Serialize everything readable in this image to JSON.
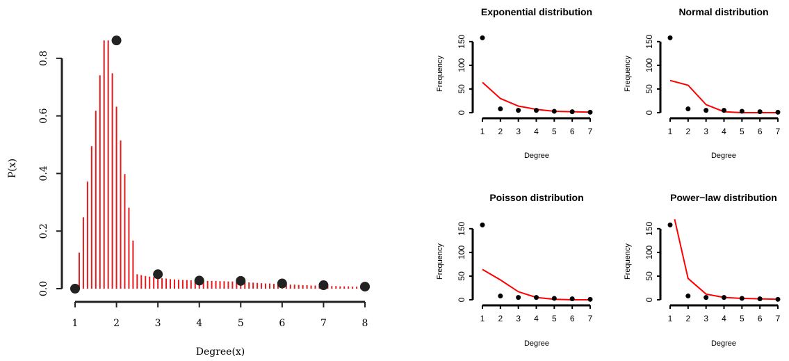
{
  "chart_data": [
    {
      "type": "line",
      "title": "",
      "xlabel": "Degree(x)",
      "ylabel": "P(x)",
      "xlim": [
        1,
        8
      ],
      "ylim": [
        0,
        0.86
      ],
      "xticks": [
        1,
        2,
        3,
        4,
        5,
        6,
        7,
        8
      ],
      "yticks": [
        0.0,
        0.2,
        0.4,
        0.6,
        0.8
      ],
      "ytick_labels": [
        "0.0",
        "0.2",
        "0.4",
        "0.6",
        "0.8"
      ],
      "grid": false,
      "colors": {
        "density": "#e41a1c",
        "points": "#222222"
      },
      "series": [
        {
          "style": "vertical-lines",
          "x": [
            1.0,
            1.1,
            1.2,
            1.3,
            1.4,
            1.5,
            1.6,
            1.7,
            1.8,
            1.9,
            2.0,
            2.1,
            2.2,
            2.3,
            2.4,
            2.5,
            2.6,
            2.7,
            2.8,
            2.9,
            3.0,
            3.1,
            3.2,
            3.3,
            3.4,
            3.5,
            3.6,
            3.7,
            3.8,
            3.9,
            4.0,
            4.1,
            4.2,
            4.3,
            4.4,
            4.5,
            4.6,
            4.7,
            4.8,
            4.9,
            5.0,
            5.1,
            5.2,
            5.3,
            5.4,
            5.5,
            5.6,
            5.7,
            5.8,
            5.9,
            6.0,
            6.1,
            6.2,
            6.3,
            6.4,
            6.5,
            6.6,
            6.7,
            6.8,
            6.9,
            7.0,
            7.1,
            7.2,
            7.3,
            7.4,
            7.5,
            7.6,
            7.7,
            7.8,
            7.9,
            8.0
          ],
          "y": [
            0.0,
            0.125,
            0.248,
            0.372,
            0.495,
            0.618,
            0.741,
            0.862,
            0.862,
            0.748,
            0.632,
            0.515,
            0.398,
            0.281,
            0.167,
            0.05,
            0.047,
            0.044,
            0.042,
            0.04,
            0.038,
            0.036,
            0.035,
            0.033,
            0.032,
            0.031,
            0.03,
            0.03,
            0.029,
            0.028,
            0.028,
            0.028,
            0.027,
            0.027,
            0.027,
            0.026,
            0.026,
            0.025,
            0.025,
            0.024,
            0.024,
            0.023,
            0.022,
            0.021,
            0.02,
            0.019,
            0.018,
            0.018,
            0.017,
            0.016,
            0.016,
            0.015,
            0.014,
            0.014,
            0.013,
            0.012,
            0.012,
            0.011,
            0.011,
            0.01,
            0.01,
            0.009,
            0.009,
            0.009,
            0.008,
            0.008,
            0.008,
            0.007,
            0.007,
            0.007,
            0.007
          ]
        },
        {
          "style": "points",
          "x": [
            1,
            2,
            3,
            4,
            5,
            6,
            7,
            8
          ],
          "y": [
            0.0,
            0.862,
            0.05,
            0.028,
            0.027,
            0.018,
            0.012,
            0.007
          ]
        }
      ]
    },
    {
      "type": "line",
      "title": "Exponential distribution",
      "xlabel": "Degree",
      "ylabel": "Frequency",
      "xlim": [
        1,
        7
      ],
      "ylim": [
        0,
        160
      ],
      "xticks": [
        1,
        2,
        3,
        4,
        5,
        6,
        7
      ],
      "yticks": [
        0,
        50,
        100,
        150
      ],
      "grid": false,
      "colors": {
        "fit": "#ff0000",
        "points": "#000000"
      },
      "series": [
        {
          "style": "points",
          "x": [
            1,
            2,
            3,
            4,
            5,
            6,
            7
          ],
          "y": [
            158,
            8,
            5,
            5,
            3,
            2,
            1
          ]
        },
        {
          "style": "line",
          "x": [
            1,
            2,
            3,
            4,
            5,
            6,
            7
          ],
          "y": [
            64,
            30,
            14,
            7,
            3,
            2,
            1
          ]
        }
      ]
    },
    {
      "type": "line",
      "title": "Normal distribution",
      "xlabel": "Degree",
      "ylabel": "Frequency",
      "xlim": [
        1,
        7
      ],
      "ylim": [
        0,
        160
      ],
      "xticks": [
        1,
        2,
        3,
        4,
        5,
        6,
        7
      ],
      "yticks": [
        0,
        50,
        100,
        150
      ],
      "grid": false,
      "colors": {
        "fit": "#ff0000",
        "points": "#000000"
      },
      "series": [
        {
          "style": "points",
          "x": [
            1,
            2,
            3,
            4,
            5,
            6,
            7
          ],
          "y": [
            158,
            8,
            5,
            5,
            3,
            2,
            1
          ]
        },
        {
          "style": "line",
          "x": [
            1,
            2,
            3,
            4,
            5,
            6,
            7
          ],
          "y": [
            68,
            58,
            17,
            2,
            0,
            0,
            0
          ]
        }
      ]
    },
    {
      "type": "line",
      "title": "Poisson distribution",
      "xlabel": "Degree",
      "ylabel": "Frequency",
      "xlim": [
        1,
        7
      ],
      "ylim": [
        0,
        160
      ],
      "xticks": [
        1,
        2,
        3,
        4,
        5,
        6,
        7
      ],
      "yticks": [
        0,
        50,
        100,
        150
      ],
      "grid": false,
      "colors": {
        "fit": "#ff0000",
        "points": "#000000"
      },
      "series": [
        {
          "style": "points",
          "x": [
            1,
            2,
            3,
            4,
            5,
            6,
            7
          ],
          "y": [
            158,
            8,
            5,
            5,
            3,
            2,
            1
          ]
        },
        {
          "style": "line",
          "x": [
            1,
            2,
            3,
            4,
            5,
            6,
            7
          ],
          "y": [
            64,
            42,
            17,
            5,
            1,
            0,
            0
          ]
        }
      ]
    },
    {
      "type": "line",
      "title": "Power−law distribution",
      "xlabel": "Degree",
      "ylabel": "Frequency",
      "xlim": [
        1,
        7
      ],
      "ylim": [
        0,
        160
      ],
      "xticks": [
        1,
        2,
        3,
        4,
        5,
        6,
        7
      ],
      "yticks": [
        0,
        50,
        100,
        150
      ],
      "grid": false,
      "colors": {
        "fit": "#ff0000",
        "points": "#000000"
      },
      "series": [
        {
          "style": "points",
          "x": [
            1,
            2,
            3,
            4,
            5,
            6,
            7
          ],
          "y": [
            158,
            8,
            5,
            5,
            3,
            2,
            1
          ]
        },
        {
          "style": "line",
          "x": [
            1.25,
            2,
            3,
            4,
            5,
            6,
            7
          ],
          "y": [
            170,
            45,
            12,
            5,
            3,
            2,
            1
          ]
        }
      ]
    }
  ]
}
